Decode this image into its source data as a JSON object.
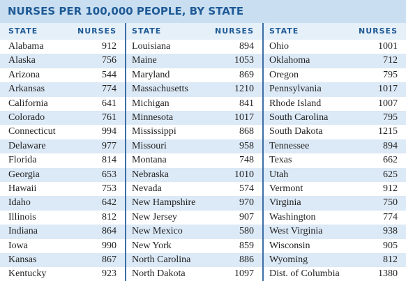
{
  "title": "NURSES PER 100,000 PEOPLE, BY STATE",
  "table": {
    "headers": [
      [
        "STATE",
        "NURSES"
      ],
      [
        "STATE",
        "NURSES"
      ],
      [
        "STATE",
        "NURSES"
      ]
    ],
    "groups": [
      [
        [
          "Alabama",
          912
        ],
        [
          "Alaska",
          756
        ],
        [
          "Arizona",
          544
        ],
        [
          "Arkansas",
          774
        ],
        [
          "California",
          641
        ],
        [
          "Colorado",
          761
        ],
        [
          "Connecticut",
          994
        ],
        [
          "Delaware",
          977
        ],
        [
          "Florida",
          814
        ],
        [
          "Georgia",
          653
        ],
        [
          "Hawaii",
          753
        ],
        [
          "Idaho",
          642
        ],
        [
          "Illinois",
          812
        ],
        [
          "Indiana",
          864
        ],
        [
          "Iowa",
          990
        ],
        [
          "Kansas",
          867
        ],
        [
          "Kentucky",
          923
        ]
      ],
      [
        [
          "Louisiana",
          894
        ],
        [
          "Maine",
          1053
        ],
        [
          "Maryland",
          869
        ],
        [
          "Massachusetts",
          1210
        ],
        [
          "Michigan",
          841
        ],
        [
          "Minnesota",
          1017
        ],
        [
          "Mississippi",
          868
        ],
        [
          "Missouri",
          958
        ],
        [
          "Montana",
          748
        ],
        [
          "Nebraska",
          1010
        ],
        [
          "Nevada",
          574
        ],
        [
          "New Hampshire",
          970
        ],
        [
          "New Jersey",
          907
        ],
        [
          "New Mexico",
          580
        ],
        [
          "New York",
          859
        ],
        [
          "North Carolina",
          886
        ],
        [
          "North Dakota",
          1097
        ]
      ],
      [
        [
          "Ohio",
          1001
        ],
        [
          "Oklahoma",
          712
        ],
        [
          "Oregon",
          795
        ],
        [
          "Pennsylvania",
          1017
        ],
        [
          "Rhode Island",
          1007
        ],
        [
          "South Carolina",
          795
        ],
        [
          "South Dakota",
          1215
        ],
        [
          "Tennessee",
          894
        ],
        [
          "Texas",
          662
        ],
        [
          "Utah",
          625
        ],
        [
          "Vermont",
          912
        ],
        [
          "Virginia",
          750
        ],
        [
          "Washington",
          774
        ],
        [
          "West Virginia",
          938
        ],
        [
          "Wisconsin",
          905
        ],
        [
          "Wyoming",
          812
        ],
        [
          "Dist. of Columbia",
          1380
        ]
      ]
    ]
  }
}
